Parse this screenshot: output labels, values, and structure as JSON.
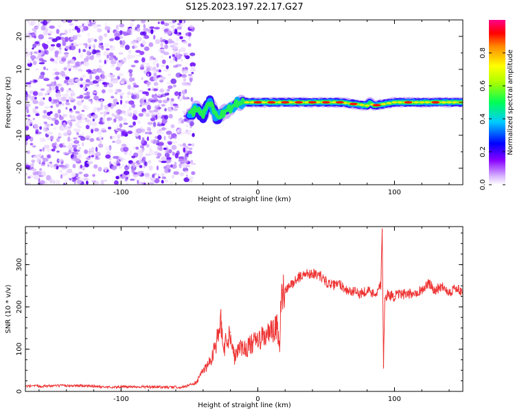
{
  "title": "S125.2023.197.22.17.G27",
  "chart_data": [
    {
      "type": "heatmap",
      "xlabel": "Height of straight line (km)",
      "ylabel": "Frequency (Hz)",
      "xlim": [
        -170,
        150
      ],
      "ylim": [
        -25,
        25
      ],
      "xticks": [
        -100,
        0,
        100
      ],
      "yticks": [
        -20,
        -10,
        0,
        10,
        20
      ],
      "noise_region_x": [
        -170,
        -50
      ],
      "ridge": {
        "x": [
          -50,
          -45,
          -40,
          -35,
          -30,
          -25,
          -20,
          -15,
          -10,
          0,
          20,
          40,
          60,
          80,
          82,
          85,
          100,
          110,
          120,
          150
        ],
        "frequency": [
          -4,
          -2,
          -4,
          0,
          -5,
          -3,
          -2,
          0,
          0,
          0,
          0,
          0,
          0,
          -1,
          0,
          -1,
          0,
          0,
          0,
          0
        ],
        "peak_amplitude_x": [
          0,
          10,
          20,
          30,
          40,
          50,
          60,
          70,
          87,
          110,
          130
        ]
      },
      "colorbar": {
        "label": "Normalized spectral amplitude",
        "ticks": [
          0.0,
          0.2,
          0.4,
          0.6,
          0.8
        ],
        "tick_labels": [
          "0.0",
          "0.2",
          "0.4",
          "0.6",
          "0.8"
        ],
        "range": [
          0,
          1
        ]
      }
    },
    {
      "type": "line",
      "xlabel": "Height of straight line (km)",
      "ylabel": "SNR (10 * v/v)",
      "xlim": [
        -170,
        150
      ],
      "ylim": [
        0,
        390
      ],
      "xticks": [
        -100,
        0,
        100
      ],
      "yticks": [
        0,
        100,
        200,
        300
      ],
      "series": [
        {
          "name": "SNR",
          "color": "#ee3333",
          "x": [
            -170,
            -150,
            -130,
            -110,
            -90,
            -70,
            -55,
            -45,
            -40,
            -35,
            -30,
            -27,
            -25,
            -23,
            -20,
            -17,
            -14,
            -10,
            -5,
            0,
            5,
            10,
            14,
            16,
            17,
            18,
            20,
            25,
            30,
            35,
            40,
            45,
            50,
            55,
            60,
            65,
            70,
            75,
            80,
            85,
            90,
            91,
            92,
            93,
            95,
            100,
            105,
            110,
            115,
            120,
            125,
            130,
            135,
            140,
            145,
            150
          ],
          "values": [
            12,
            13,
            14,
            10,
            11,
            10,
            10,
            20,
            50,
            70,
            120,
            160,
            100,
            120,
            140,
            80,
            110,
            100,
            110,
            120,
            130,
            140,
            150,
            110,
            200,
            240,
            235,
            255,
            270,
            278,
            280,
            275,
            260,
            250,
            255,
            240,
            235,
            232,
            240,
            230,
            250,
            380,
            60,
            220,
            230,
            225,
            230,
            228,
            235,
            240,
            255,
            240,
            250,
            235,
            245,
            230
          ]
        }
      ]
    }
  ]
}
